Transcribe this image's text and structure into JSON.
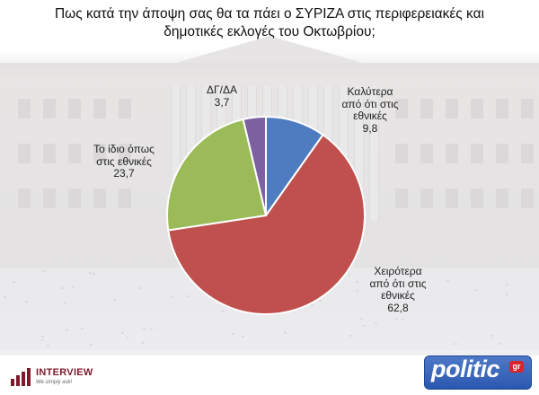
{
  "title": {
    "line1": "Πως κατά την άποψη σας θα τα πάει ο ΣΥΡΙΖΑ στις περιφερειακές και",
    "line2": "δημοτικές εκλογές του Οκτωβρίου;"
  },
  "chart_data": {
    "type": "pie",
    "title": "Πως κατά την άποψη σας θα τα πάει ο ΣΥΡΙΖΑ στις περιφερειακές και δημοτικές εκλογές του Οκτωβρίου;",
    "start_angle_deg": 0,
    "direction": "clockwise",
    "slices": [
      {
        "label_lines": [
          "Καλύτερα",
          "από ότι στις",
          "εθνικές"
        ],
        "value": 9.8,
        "value_text": "9,8",
        "color": "#4f7cc0"
      },
      {
        "label_lines": [
          "Χειρότερα",
          "από ότι στις",
          "εθνικές"
        ],
        "value": 62.8,
        "value_text": "62,8",
        "color": "#c0504d"
      },
      {
        "label_lines": [
          "Το ίδιο όπως",
          "στις εθνικές"
        ],
        "value": 23.7,
        "value_text": "23,7",
        "color": "#9bbb59"
      },
      {
        "label_lines": [
          "ΔΓ/ΔΑ"
        ],
        "value": 3.7,
        "value_text": "3,7",
        "color": "#7d60a0"
      }
    ]
  },
  "footer": {
    "interview_logo": {
      "name": "INTERVIEW",
      "tagline": "We simply ask!",
      "color": "#7a1b2b"
    },
    "politic_logo": {
      "name": "politic",
      "suffix": "gr",
      "color": "#2a58b0"
    }
  }
}
